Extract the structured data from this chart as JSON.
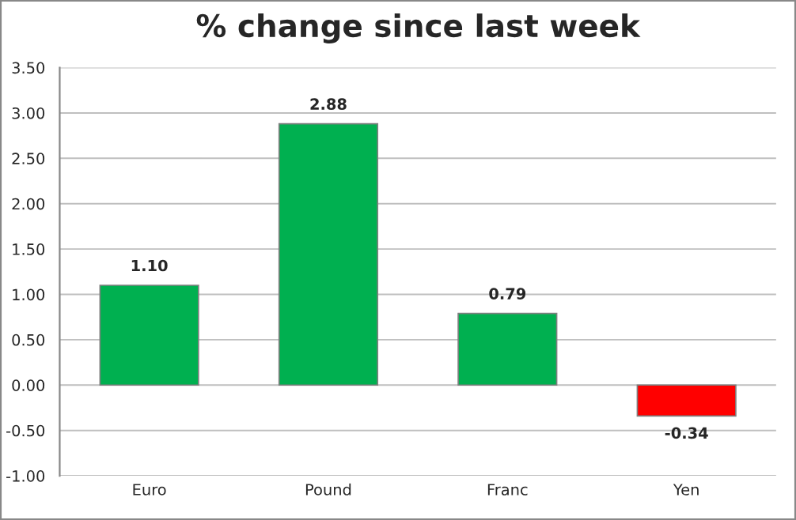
{
  "chart_data": {
    "type": "bar",
    "title": "% change since last week",
    "categories": [
      "Euro",
      "Pound",
      "Franc",
      "Yen"
    ],
    "values": [
      1.1,
      2.88,
      0.79,
      -0.34
    ],
    "colors": [
      "#00b050",
      "#00b050",
      "#00b050",
      "#ff0000"
    ],
    "value_labels": [
      "1.10",
      "2.88",
      "0.79",
      "-0.34"
    ],
    "ylim": [
      -1,
      3.5
    ],
    "yticks": [
      {
        "value": -1,
        "label": "-1.00"
      },
      {
        "value": -0.5,
        "label": "-0.50"
      },
      {
        "value": 0,
        "label": "0.00"
      },
      {
        "value": 0.5,
        "label": "0.50"
      },
      {
        "value": 1,
        "label": "1.00"
      },
      {
        "value": 1.5,
        "label": "1.50"
      },
      {
        "value": 2,
        "label": "2.00"
      },
      {
        "value": 2.5,
        "label": "2.50"
      },
      {
        "value": 3,
        "label": "3.00"
      },
      {
        "value": 3.5,
        "label": "3.50"
      }
    ],
    "grid": "y",
    "legend": false
  }
}
